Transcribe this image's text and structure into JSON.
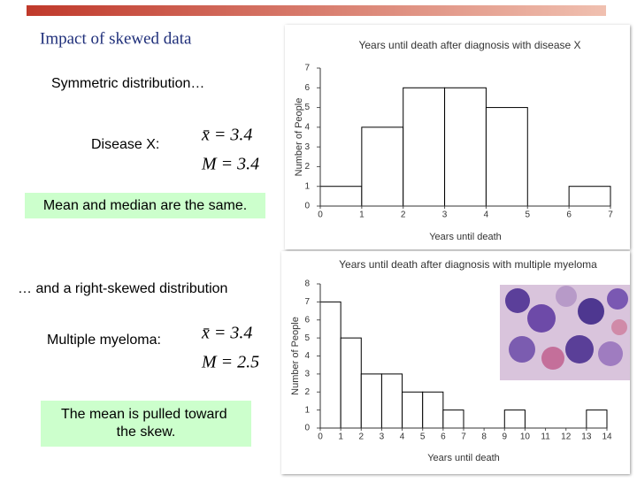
{
  "slide": {
    "title": "Impact of skewed data",
    "heading1": "Symmetric distribution…",
    "label1": "Disease X:",
    "mean1": "x̄ = 3.4",
    "median1": "M = 3.4",
    "box1": "Mean and median are the same.",
    "heading2": "… and a right-skewed distribution",
    "label2": "Multiple myeloma:",
    "mean2": "x̄ = 3.4",
    "median2": "M = 2.5",
    "box2": "The mean is pulled toward the skew."
  },
  "chart_data": [
    {
      "type": "histogram",
      "title": "Years until death after diagnosis with disease X",
      "x_label": "Years until death",
      "y_label": "Number of People",
      "bins": [
        0,
        1,
        2,
        3,
        4,
        5,
        6,
        7
      ],
      "values": [
        1,
        4,
        6,
        6,
        5,
        0,
        1
      ],
      "color": "#ffffff",
      "xlim": [
        0,
        7
      ],
      "xticks": [
        0,
        1,
        2,
        3,
        4,
        5,
        6,
        7
      ],
      "ylim": [
        0,
        7
      ],
      "yticks": [
        0,
        1,
        2,
        3,
        4,
        5,
        6,
        7
      ]
    },
    {
      "type": "histogram",
      "title": "Years until death after diagnosis with multiple myeloma",
      "x_label": "Years until death",
      "y_label": "Number of People",
      "bins": [
        0,
        1,
        2,
        3,
        4,
        5,
        6,
        7,
        8,
        9,
        10,
        11,
        12,
        13,
        14
      ],
      "values": [
        7,
        5,
        3,
        3,
        2,
        2,
        1,
        0,
        0,
        1,
        0,
        0,
        0,
        1
      ],
      "color": "#ffffff",
      "xlim": [
        0,
        14
      ],
      "xticks": [
        0,
        1,
        2,
        3,
        4,
        5,
        6,
        7,
        8,
        9,
        10,
        11,
        12,
        13,
        14
      ],
      "ylim": [
        0,
        8
      ],
      "yticks": [
        0,
        1,
        2,
        3,
        4,
        5,
        6,
        7,
        8
      ]
    }
  ]
}
